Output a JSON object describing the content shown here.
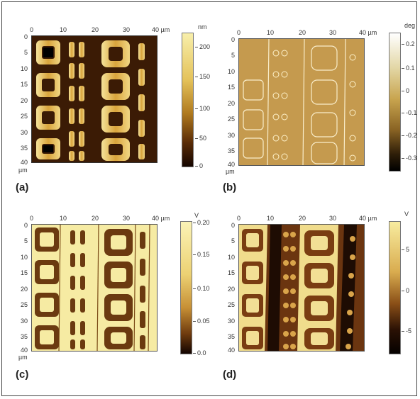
{
  "panels": [
    {
      "id": "a",
      "label": "(a)",
      "x_ticks": [
        "0",
        "10",
        "20",
        "30",
        "40 µm"
      ],
      "y_ticks": [
        "0",
        "5",
        "10",
        "15",
        "20",
        "25",
        "30",
        "35",
        "40"
      ],
      "y_unit": "µm",
      "colorbar": {
        "unit": "nm",
        "ticks": [
          "200",
          "150",
          "100",
          "50",
          "0"
        ],
        "colors": [
          "#f8efab",
          "#e4c25a",
          "#b07a1f",
          "#5a2c07",
          "#140500"
        ]
      }
    },
    {
      "id": "b",
      "label": "(b)",
      "x_ticks": [
        "0",
        "10",
        "20",
        "30",
        "40 µm"
      ],
      "y_ticks": [
        "0",
        "5",
        "10",
        "15",
        "20",
        "25",
        "30",
        "35",
        "40"
      ],
      "y_unit": "µm",
      "colorbar": {
        "unit": "deg",
        "ticks": [
          "0.2",
          "0.1",
          "0",
          "-0.1",
          "-0.2",
          "-0.3"
        ],
        "colors": [
          "#ffffff",
          "#e3d7a6",
          "#c8a44e",
          "#8a6424",
          "#2e1e08",
          "#000000"
        ]
      }
    },
    {
      "id": "c",
      "label": "(c)",
      "x_ticks": [
        "0",
        "10",
        "20",
        "30",
        "40 µm"
      ],
      "y_ticks": [
        "0",
        "5",
        "10",
        "15",
        "20",
        "25",
        "30",
        "35",
        "40"
      ],
      "y_unit": "µm",
      "colorbar": {
        "unit": "V",
        "ticks": [
          "0.20",
          "0.15",
          "0.10",
          "0.05",
          "0.0"
        ],
        "colors": [
          "#fbf3b6",
          "#ecd173",
          "#c79036",
          "#6e3a0e",
          "#120400"
        ]
      }
    },
    {
      "id": "d",
      "label": "(d)",
      "x_ticks": [
        "0",
        "10",
        "20",
        "30",
        "40 µm"
      ],
      "y_ticks": [
        "0",
        "5",
        "10",
        "15",
        "20",
        "25",
        "30",
        "35",
        "40"
      ],
      "y_unit": "",
      "colorbar": {
        "unit": "V",
        "ticks": [
          "5",
          "0",
          "-5"
        ],
        "colors": [
          "#f8ec9f",
          "#d9ac4f",
          "#8a4f17",
          "#2a1104",
          "#050100"
        ]
      }
    }
  ]
}
